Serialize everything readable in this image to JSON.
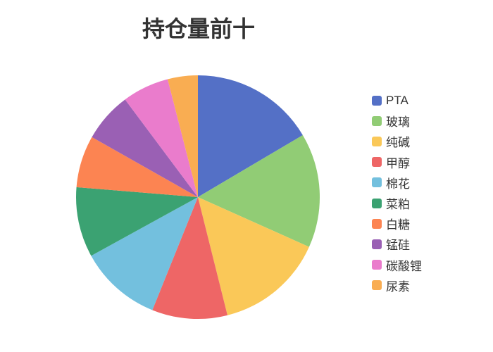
{
  "chart": {
    "title": "持仓量前十"
  },
  "chart_data": {
    "type": "pie",
    "title": "持仓量前十",
    "legend_position": "right",
    "start_angle": "12 o'clock, clockwise",
    "labels": [
      "PTA",
      "玻璃",
      "纯碱",
      "甲醇",
      "棉花",
      "菜粕",
      "白糖",
      "锰硅",
      "碳酸锂",
      "尿素"
    ],
    "values_percent": [
      16.5,
      15.2,
      14.4,
      10.0,
      10.9,
      9.3,
      6.9,
      6.6,
      6.2,
      4.0
    ],
    "colors": [
      "#5470C6",
      "#91CC75",
      "#FAC858",
      "#EE6666",
      "#73C0DE",
      "#3BA272",
      "#FC8452",
      "#9A60B4",
      "#EA7CCC",
      "#F9AD52"
    ],
    "title_color": "#333333",
    "legend_text_color": "#333333",
    "background_color": "#ffffff"
  }
}
